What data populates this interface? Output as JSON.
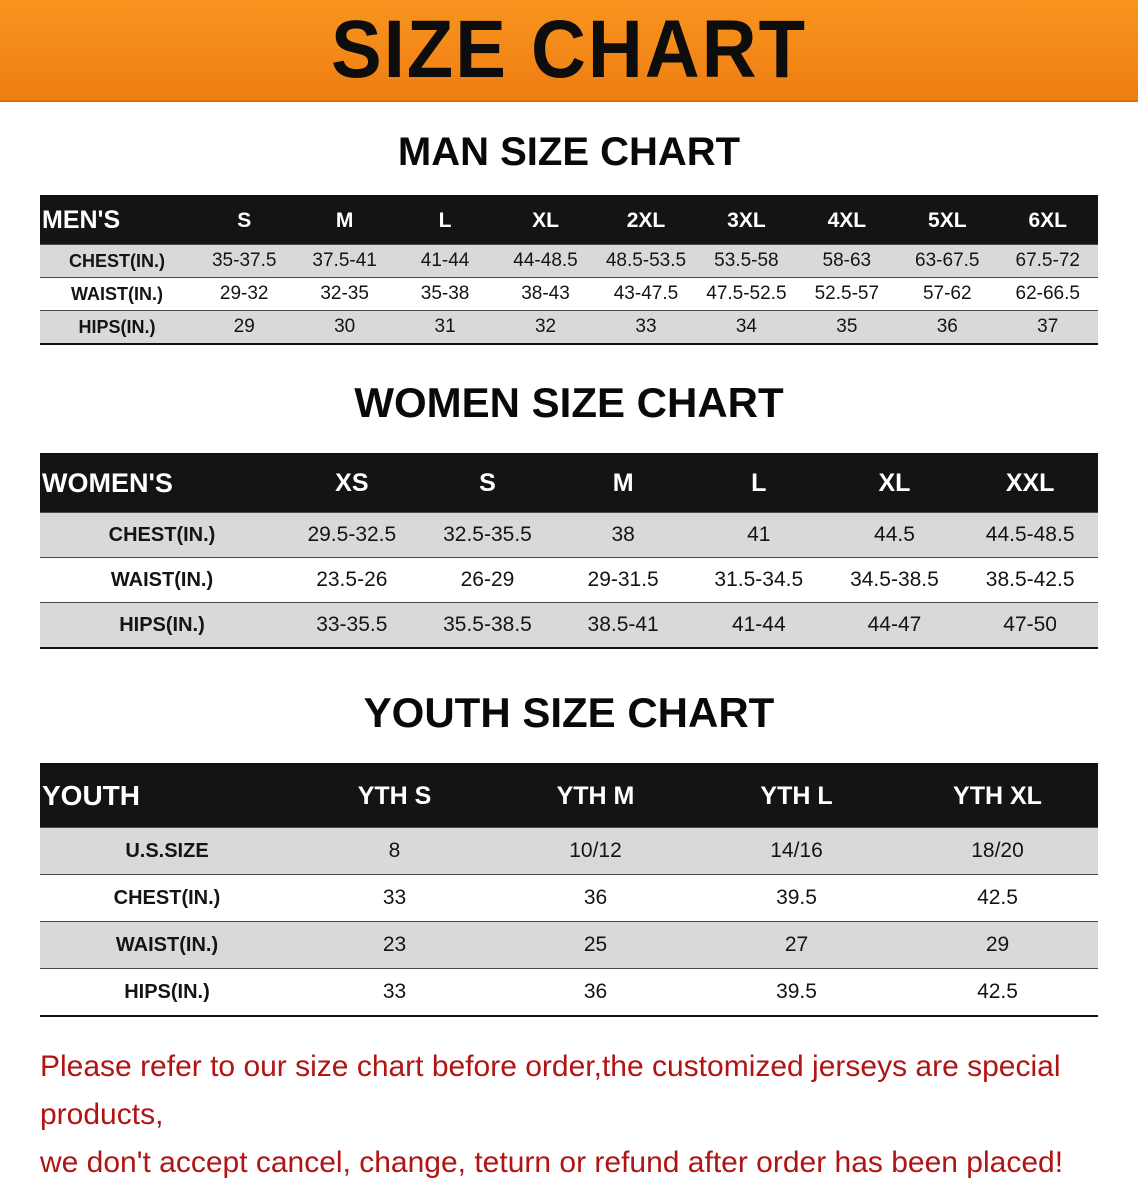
{
  "banner": {
    "title": "SIZE CHART"
  },
  "men": {
    "heading": "MAN SIZE CHART",
    "table": {
      "label": "MEN'S",
      "columns": [
        "S",
        "M",
        "L",
        "XL",
        "2XL",
        "3XL",
        "4XL",
        "5XL",
        "6XL"
      ],
      "rows": [
        {
          "label": "CHEST(IN.)",
          "values": [
            "35-37.5",
            "37.5-41",
            "41-44",
            "44-48.5",
            "48.5-53.5",
            "53.5-58",
            "58-63",
            "63-67.5",
            "67.5-72"
          ]
        },
        {
          "label": "WAIST(IN.)",
          "values": [
            "29-32",
            "32-35",
            "35-38",
            "38-43",
            "43-47.5",
            "47.5-52.5",
            "52.5-57",
            "57-62",
            "62-66.5"
          ]
        },
        {
          "label": "HIPS(IN.)",
          "values": [
            "29",
            "30",
            "31",
            "32",
            "33",
            "34",
            "35",
            "36",
            "37"
          ]
        }
      ]
    }
  },
  "women": {
    "heading": "WOMEN SIZE CHART",
    "table": {
      "label": "WOMEN'S",
      "columns": [
        "XS",
        "S",
        "M",
        "L",
        "XL",
        "XXL"
      ],
      "rows": [
        {
          "label": "CHEST(IN.)",
          "values": [
            "29.5-32.5",
            "32.5-35.5",
            "38",
            "41",
            "44.5",
            "44.5-48.5"
          ]
        },
        {
          "label": "WAIST(IN.)",
          "values": [
            "23.5-26",
            "26-29",
            "29-31.5",
            "31.5-34.5",
            "34.5-38.5",
            "38.5-42.5"
          ]
        },
        {
          "label": "HIPS(IN.)",
          "values": [
            "33-35.5",
            "35.5-38.5",
            "38.5-41",
            "41-44",
            "44-47",
            "47-50"
          ]
        }
      ]
    }
  },
  "youth": {
    "heading": "YOUTH SIZE CHART",
    "table": {
      "label": "YOUTH",
      "columns": [
        "YTH S",
        "YTH M",
        "YTH L",
        "YTH XL"
      ],
      "rows": [
        {
          "label": "U.S.SIZE",
          "values": [
            "8",
            "10/12",
            "14/16",
            "18/20"
          ]
        },
        {
          "label": "CHEST(IN.)",
          "values": [
            "33",
            "36",
            "39.5",
            "42.5"
          ]
        },
        {
          "label": "WAIST(IN.)",
          "values": [
            "23",
            "25",
            "27",
            "29"
          ]
        },
        {
          "label": "HIPS(IN.)",
          "values": [
            "33",
            "36",
            "39.5",
            "42.5"
          ]
        }
      ]
    }
  },
  "footer": {
    "line1": "Please refer to our size chart before order,the customized jerseys are special products,",
    "line2": "we don't accept cancel, change, teturn or refund after order has been placed!"
  }
}
